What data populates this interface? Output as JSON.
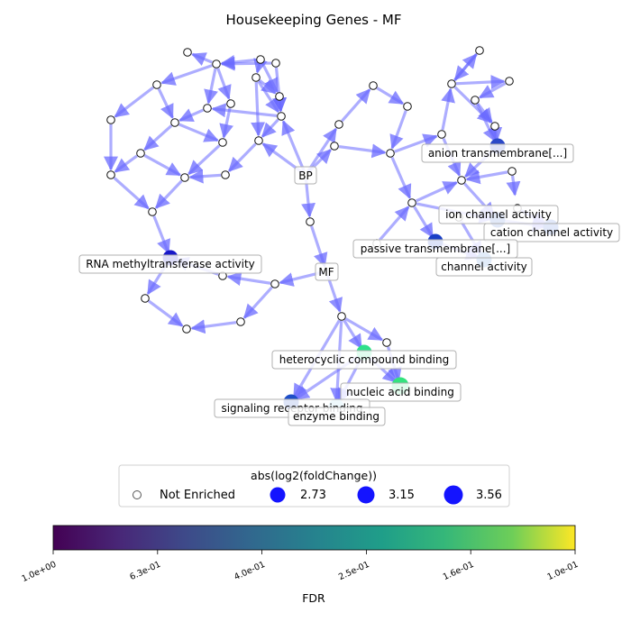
{
  "title": "Housekeeping Genes - MF",
  "graph": {
    "root_labels": [
      "BP",
      "MF"
    ],
    "node_labels": [
      "anion transmembrane[...]",
      "ion channel activity",
      "cation channel activity",
      "passive transmembrane[...]",
      "channel activity",
      "RNA methyltransferase activity",
      "heterocyclic compound binding",
      "nucleic acid binding",
      "signaling receptor binding",
      "enzyme binding"
    ]
  },
  "legend": {
    "title": "abs(log2(foldChange))",
    "items": [
      {
        "label": "Not Enriched",
        "kind": "hollow"
      },
      {
        "label": "2.73",
        "kind": "filled"
      },
      {
        "label": "3.15",
        "kind": "filled"
      },
      {
        "label": "3.56",
        "kind": "filled"
      }
    ]
  },
  "colorbar": {
    "label": "FDR",
    "ticks": [
      "1.0e+00",
      "6.3e-01",
      "4.0e-01",
      "2.5e-01",
      "1.6e-01",
      "1.0e-01"
    ]
  },
  "colors": {
    "edge": "#6a6aff",
    "node_fill_enriched_legend": "#1414ff",
    "label_box_border": "#b0b0b0"
  }
}
